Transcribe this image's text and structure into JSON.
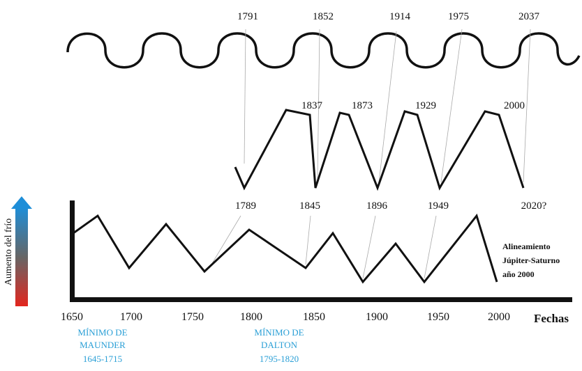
{
  "top_labels": [
    "1791",
    "1852",
    "1914",
    "1975",
    "2037"
  ],
  "middle_high_labels": [
    "1837",
    "1873",
    "1929",
    "2000"
  ],
  "middle_low_labels": [
    "1789",
    "1845",
    "1896",
    "1949",
    "2020?"
  ],
  "axis": {
    "y_label": "Aumento del frío",
    "x_label": "Fechas",
    "x_ticks": [
      "1650",
      "1700",
      "1750",
      "1800",
      "1850",
      "1900",
      "1950",
      "2000"
    ]
  },
  "annotation": [
    "Alineamiento",
    "Júpiter-Saturno",
    "año 2000"
  ],
  "minima": [
    {
      "lines": [
        "MÍNIMO DE",
        "MAUNDER",
        "1645-1715"
      ]
    },
    {
      "lines": [
        "MÍNIMO DE",
        "DALTON",
        "1795-1820"
      ]
    }
  ]
}
